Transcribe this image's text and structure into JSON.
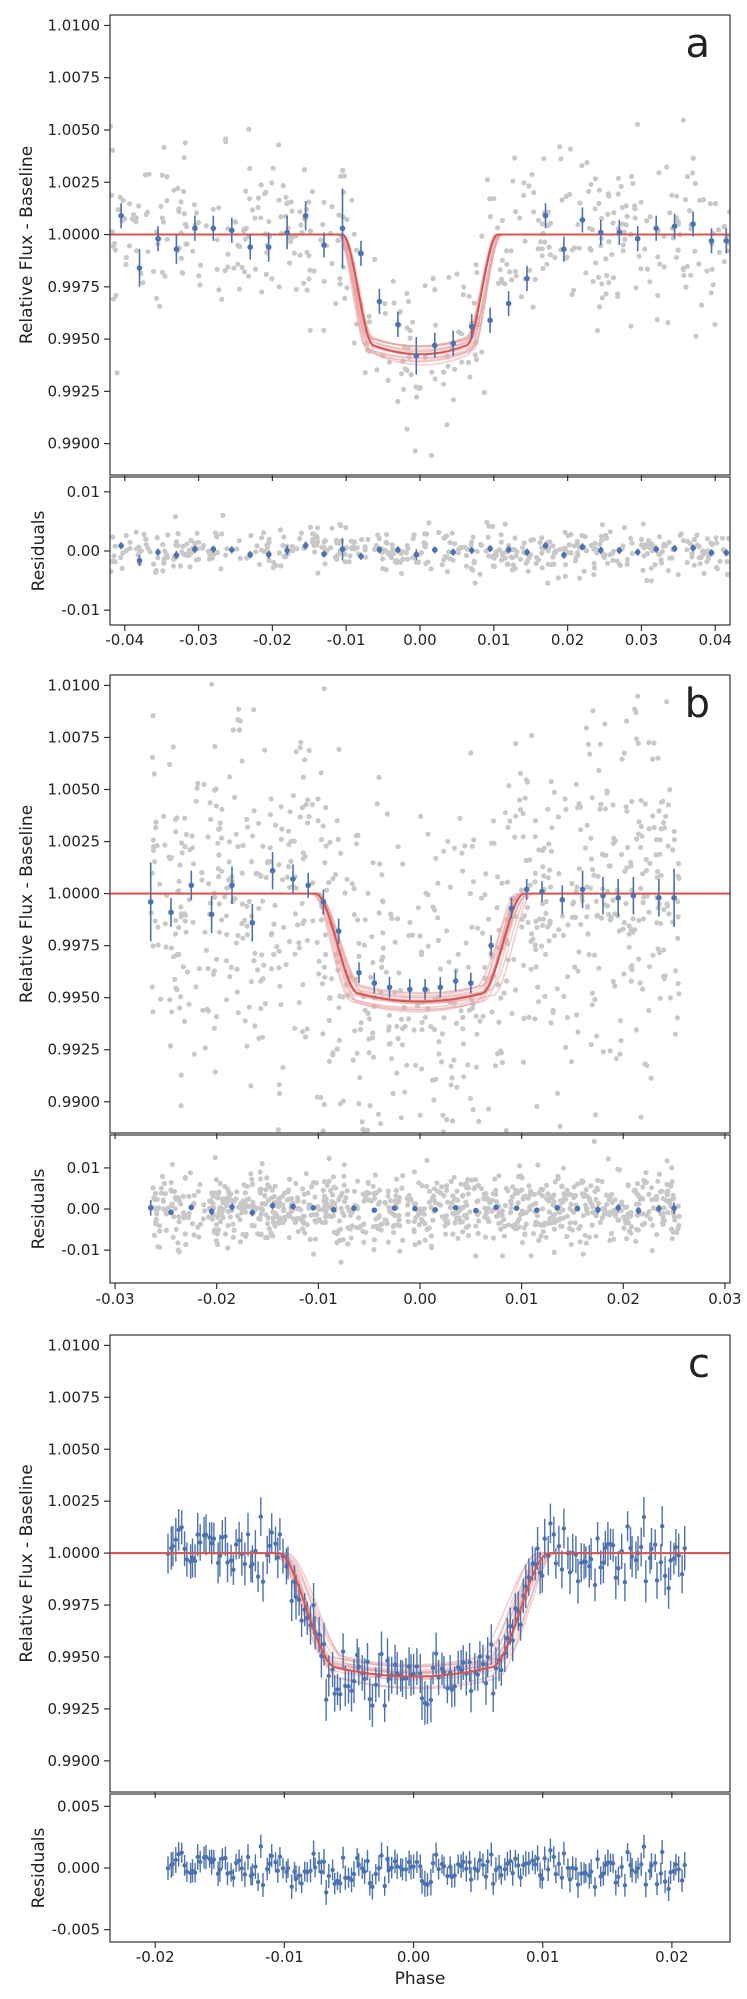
{
  "figure": {
    "x_axis_label": "Phase",
    "flux_axis_label": "Relative Flux - Baseline",
    "residual_axis_label": "Residuals"
  },
  "colors": {
    "raw_points": "#c8c8c8",
    "binned_points": "#4c72b0",
    "model": "#d9534f",
    "model_band": "#e8a6a6",
    "frame": "#333333"
  },
  "chart_data": [
    {
      "type": "scatter",
      "panel_label": "a",
      "title": "",
      "xlabel": "",
      "ylabel": "Relative Flux - Baseline",
      "xlim": [
        -0.042,
        0.042
      ],
      "ylim": [
        0.9885,
        1.0105
      ],
      "x_ticks": [
        -0.04,
        -0.03,
        -0.02,
        -0.01,
        0.0,
        0.01,
        0.02,
        0.03,
        0.04
      ],
      "x_tick_labels": [
        "-0.04",
        "-0.03",
        "-0.02",
        "-0.01",
        "0.00",
        "0.01",
        "0.02",
        "0.03",
        "0.04"
      ],
      "y_ticks": [
        0.99,
        0.9925,
        0.995,
        0.9975,
        1.0,
        1.0025,
        1.005,
        1.0075,
        1.01
      ],
      "y_tick_labels": [
        "0.9900",
        "0.9925",
        "0.9950",
        "0.9975",
        "1.0000",
        "1.0025",
        "1.0050",
        "1.0075",
        "1.0100"
      ],
      "model": {
        "depth": 0.0053,
        "t14": 0.021,
        "ingress": 0.0042
      },
      "raw_scatter": {
        "count": 480,
        "sigma": 0.0019
      },
      "binned": {
        "x": [
          -0.0405,
          -0.038,
          -0.0355,
          -0.033,
          -0.0305,
          -0.028,
          -0.0255,
          -0.023,
          -0.0205,
          -0.018,
          -0.0155,
          -0.013,
          -0.0105,
          -0.008,
          -0.0055,
          -0.003,
          -0.0005,
          0.002,
          0.0045,
          0.007,
          0.0095,
          0.012,
          0.0145,
          0.017,
          0.0195,
          0.022,
          0.0245,
          0.027,
          0.0295,
          0.032,
          0.0345,
          0.037,
          0.0395,
          0.0415
        ],
        "y": [
          1.0009,
          0.9984,
          0.9998,
          0.9993,
          1.0003,
          1.0003,
          1.0002,
          0.9994,
          0.9994,
          1.0001,
          1.0009,
          0.9995,
          1.0003,
          0.9991,
          0.9968,
          0.9957,
          0.9942,
          0.9947,
          0.9948,
          0.9956,
          0.9959,
          0.9967,
          0.9979,
          1.0009,
          0.9993,
          1.0007,
          1.0001,
          1.0001,
          0.9998,
          1.0003,
          1.0004,
          1.0005,
          0.9997,
          0.9997
        ],
        "yerr": [
          0.0006,
          0.0009,
          0.0006,
          0.0007,
          0.0006,
          0.0006,
          0.0006,
          0.0006,
          0.0007,
          0.0008,
          0.0007,
          0.0006,
          0.0019,
          0.0006,
          0.0006,
          0.0006,
          0.0009,
          0.0006,
          0.0006,
          0.0006,
          0.0006,
          0.0006,
          0.0006,
          0.0006,
          0.0006,
          0.0006,
          0.0006,
          0.0006,
          0.0006,
          0.0006,
          0.0006,
          0.0006,
          0.0006,
          0.0006
        ]
      },
      "residuals": {
        "ylabel": "Residuals",
        "ylim": [
          -0.0125,
          0.0125
        ],
        "y_ticks": [
          -0.01,
          0.0,
          0.01
        ],
        "y_tick_labels": [
          "-0.01",
          "0.00",
          "0.01"
        ],
        "raw_sigma": 0.0019,
        "binned_x": [
          -0.0405,
          -0.038,
          -0.0355,
          -0.033,
          -0.0305,
          -0.028,
          -0.0255,
          -0.023,
          -0.0205,
          -0.018,
          -0.0155,
          -0.013,
          -0.0105,
          -0.008,
          -0.0055,
          -0.003,
          -0.0005,
          0.002,
          0.0045,
          0.007,
          0.0095,
          0.012,
          0.0145,
          0.017,
          0.0195,
          0.022,
          0.0245,
          0.027,
          0.0295,
          0.032,
          0.0345,
          0.037,
          0.0395,
          0.0415
        ],
        "binned_y": [
          0.0009,
          -0.0016,
          -0.0002,
          -0.0007,
          0.0003,
          0.0003,
          0.0002,
          -0.0006,
          -0.0006,
          0.0001,
          0.0009,
          -0.0005,
          0.0003,
          -0.0009,
          0.0002,
          0.0002,
          -0.0006,
          0.0002,
          -0.0002,
          0.0001,
          0.0004,
          0.0002,
          -0.0002,
          0.0009,
          -0.0007,
          0.0007,
          0.0001,
          0.0001,
          -0.0002,
          0.0003,
          0.0004,
          0.0005,
          -0.0003,
          -0.0003
        ],
        "binned_yerr": [
          0.0006,
          0.0009,
          0.0006,
          0.0007,
          0.0006,
          0.0006,
          0.0006,
          0.0006,
          0.0007,
          0.0008,
          0.0007,
          0.0006,
          0.0019,
          0.0006,
          0.0006,
          0.0006,
          0.0009,
          0.0006,
          0.0006,
          0.0006,
          0.0006,
          0.0006,
          0.0006,
          0.0006,
          0.0006,
          0.0006,
          0.0006,
          0.0006,
          0.0006,
          0.0006,
          0.0006,
          0.0006,
          0.0006,
          0.0006
        ]
      }
    },
    {
      "type": "scatter",
      "panel_label": "b",
      "title": "",
      "xlabel": "",
      "ylabel": "Relative Flux - Baseline",
      "xlim": [
        -0.0305,
        0.0305
      ],
      "ylim": [
        0.9885,
        1.0105
      ],
      "x_ticks": [
        -0.03,
        -0.02,
        -0.01,
        0.0,
        0.01,
        0.02,
        0.03
      ],
      "x_tick_labels": [
        "-0.03",
        "-0.02",
        "-0.01",
        "0.00",
        "0.01",
        "0.02",
        "0.03"
      ],
      "y_ticks": [
        0.99,
        0.9925,
        0.995,
        0.9975,
        1.0,
        1.0025,
        1.005,
        1.0075,
        1.01
      ],
      "y_tick_labels": [
        "0.9900",
        "0.9925",
        "0.9950",
        "0.9975",
        "1.0000",
        "1.0025",
        "1.0050",
        "1.0075",
        "1.0100"
      ],
      "model": {
        "depth": 0.0048,
        "t14": 0.0205,
        "ingress": 0.0042
      },
      "raw_scatter": {
        "count": 900,
        "sigma": 0.0043,
        "xrange": [
          -0.0265,
          0.0255
        ]
      },
      "binned": {
        "x": [
          -0.0265,
          -0.0245,
          -0.0225,
          -0.0205,
          -0.0185,
          -0.0165,
          -0.0145,
          -0.0125,
          -0.011,
          -0.0095,
          -0.008,
          -0.006,
          -0.0045,
          -0.003,
          -0.001,
          0.0005,
          0.002,
          0.0035,
          0.005,
          0.007,
          0.009,
          0.0105,
          0.012,
          0.014,
          0.016,
          0.018,
          0.0195,
          0.021,
          0.0235,
          0.025
        ],
        "y": [
          0.9996,
          0.9991,
          1.0004,
          0.999,
          1.0004,
          0.9986,
          1.0011,
          1.0007,
          1.0004,
          0.9996,
          0.9982,
          0.9962,
          0.9957,
          0.9955,
          0.9954,
          0.9954,
          0.9955,
          0.9958,
          0.9957,
          0.9975,
          0.9993,
          1.0002,
          1.0001,
          0.9997,
          1.0002,
          0.9999,
          0.9998,
          0.9999,
          0.9998,
          0.9998
        ],
        "yerr": [
          0.0019,
          0.0007,
          0.0007,
          0.0009,
          0.0009,
          0.0009,
          0.0009,
          0.0007,
          0.0006,
          0.0006,
          0.0006,
          0.0005,
          0.0005,
          0.0005,
          0.0005,
          0.0005,
          0.0005,
          0.0005,
          0.0005,
          0.0005,
          0.0005,
          0.0005,
          0.0005,
          0.0007,
          0.0009,
          0.0009,
          0.0009,
          0.0009,
          0.0009,
          0.0014
        ]
      },
      "residuals": {
        "ylabel": "Residuals",
        "ylim": [
          -0.018,
          0.018
        ],
        "y_ticks": [
          -0.01,
          0.0,
          0.01
        ],
        "y_tick_labels": [
          "-0.01",
          "0.00",
          "0.01"
        ],
        "raw_sigma": 0.0043,
        "binned_x": [
          -0.0265,
          -0.0245,
          -0.0225,
          -0.0205,
          -0.0185,
          -0.0165,
          -0.0145,
          -0.0125,
          -0.0105,
          -0.0085,
          -0.0065,
          -0.0045,
          -0.0025,
          -0.0005,
          0.0015,
          0.0035,
          0.0055,
          0.0075,
          0.0095,
          0.0115,
          0.0135,
          0.0155,
          0.0175,
          0.0195,
          0.0215,
          0.0235,
          0.025
        ],
        "binned_y": [
          0.0003,
          -0.0008,
          0.0004,
          -0.0006,
          0.0005,
          -0.0009,
          0.0008,
          0.0006,
          0.0003,
          -0.0002,
          0.0002,
          -0.0003,
          0.0002,
          0.0001,
          -0.0002,
          0.0003,
          -0.0004,
          0.0004,
          0.0002,
          -0.0003,
          0.0003,
          0.0001,
          -0.0002,
          0.0003,
          -0.0004,
          0.0001,
          0.0002
        ],
        "binned_yerr": [
          0.0019,
          0.0007,
          0.0007,
          0.0009,
          0.0009,
          0.0009,
          0.0009,
          0.0007,
          0.0006,
          0.0006,
          0.0006,
          0.0005,
          0.0005,
          0.0005,
          0.0005,
          0.0005,
          0.0005,
          0.0005,
          0.0005,
          0.0005,
          0.0005,
          0.0007,
          0.0009,
          0.0009,
          0.0009,
          0.0009,
          0.0014
        ]
      }
    },
    {
      "type": "scatter",
      "panel_label": "c",
      "title": "",
      "xlabel": "Phase",
      "ylabel": "Relative Flux - Baseline",
      "xlim": [
        -0.0235,
        0.0245
      ],
      "ylim": [
        0.9885,
        1.0105
      ],
      "x_ticks": [
        -0.02,
        -0.01,
        0.0,
        0.01,
        0.02
      ],
      "x_tick_labels": [
        "-0.02",
        "-0.01",
        "0.00",
        "0.01",
        "0.02"
      ],
      "y_ticks": [
        0.99,
        0.9925,
        0.995,
        0.9975,
        1.0,
        1.0025,
        1.005,
        1.0075,
        1.01
      ],
      "y_tick_labels": [
        "0.9900",
        "0.9925",
        "0.9950",
        "0.9975",
        "1.0000",
        "1.0025",
        "1.0050",
        "1.0075",
        "1.0100"
      ],
      "model": {
        "depth": 0.0055,
        "t14": 0.021,
        "ingress": 0.0045
      },
      "points": {
        "count": 190,
        "xrange": [
          -0.019,
          0.021
        ],
        "sigma": 0.0007,
        "yerr": 0.0009
      },
      "residuals": {
        "ylabel": "Residuals",
        "ylim": [
          -0.006,
          0.006
        ],
        "y_ticks": [
          -0.005,
          0.0,
          0.005
        ],
        "y_tick_labels": [
          "-0.005",
          "0.000",
          "0.005"
        ],
        "raw_sigma": 0.0007
      }
    }
  ]
}
